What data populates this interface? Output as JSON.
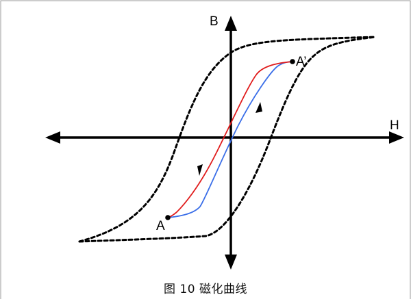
{
  "figure": {
    "caption": "图 10 磁化曲线"
  },
  "axes": {
    "vertical_label": "B",
    "horizontal_label": "H"
  },
  "points": {
    "start_label": "A",
    "end_label": "A’"
  },
  "colors": {
    "axis": "#000000",
    "outer_loop": "#000000",
    "ascending_branch": "#3a6ee8",
    "descending_branch": "#e01b1b",
    "frame": "#9a9a9a"
  }
}
